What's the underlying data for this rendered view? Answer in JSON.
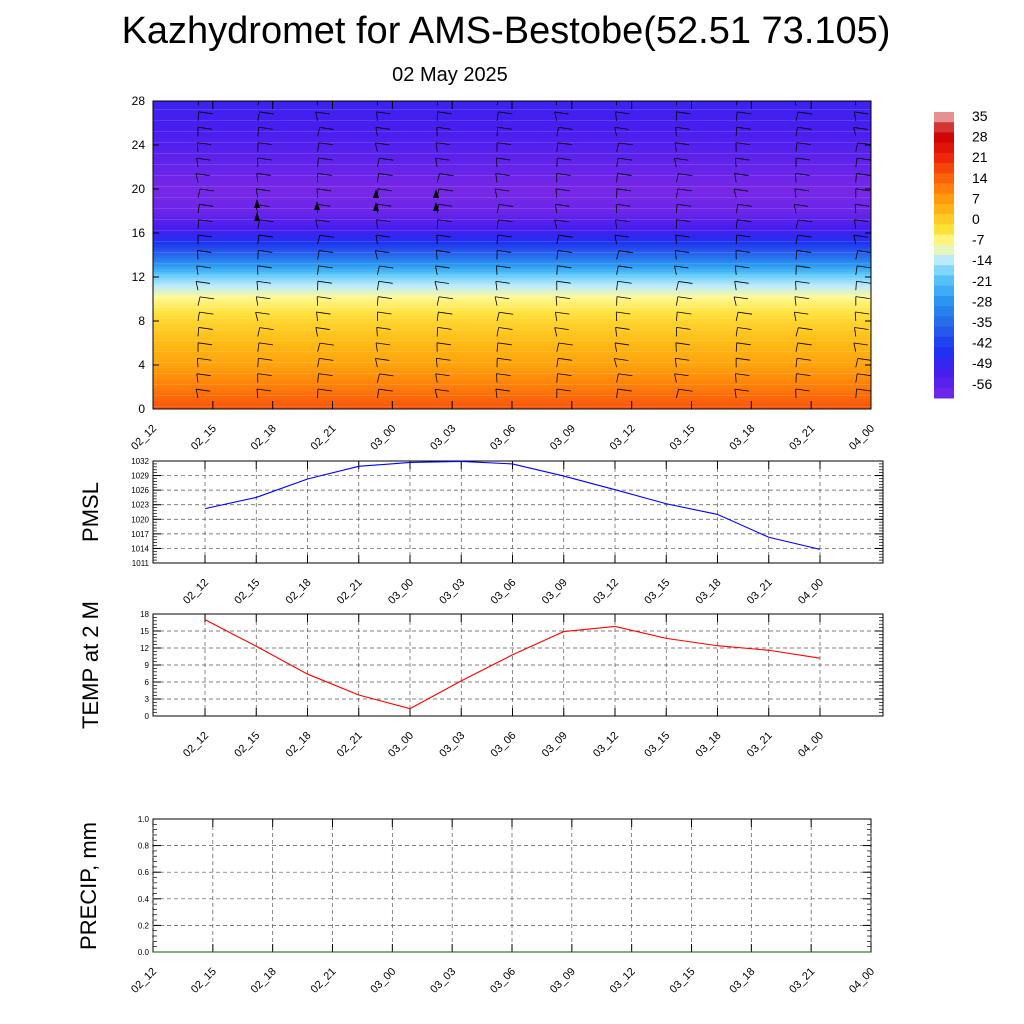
{
  "title": "Kazhydromet for AMS-Bestobe(52.51 73.105)",
  "subtitle": "02 May 2025",
  "colorbar": {
    "labels": [
      "35",
      "28",
      "21",
      "14",
      "7",
      "0",
      "-7",
      "-14",
      "-21",
      "-28",
      "-35",
      "-42",
      "-49",
      "-56"
    ]
  },
  "chart_data": [
    {
      "type": "heatmap",
      "description_source": "cross-section",
      "categories": [
        "02_12",
        "02_15",
        "02_18",
        "02_21",
        "03_00",
        "03_03",
        "03_06",
        "03_09",
        "03_12",
        "03_15",
        "03_18",
        "03_21",
        "04_00"
      ],
      "ylim": [
        0,
        28
      ],
      "yticks": [
        0,
        4,
        8,
        12,
        16,
        20,
        24,
        28
      ],
      "levels": [
        0,
        2,
        4,
        6,
        8,
        10,
        12,
        14,
        16,
        18,
        20,
        22,
        24,
        26,
        28
      ],
      "temperature_profile": [
        15,
        10,
        5,
        2,
        -2,
        -8,
        -18,
        -35,
        -50,
        -58,
        -60,
        -57,
        -54,
        -52,
        -50
      ],
      "colorbar_range": [
        -56,
        35
      ]
    },
    {
      "type": "line",
      "ylabel": "PMSL",
      "categories": [
        "02_12",
        "02_15",
        "02_18",
        "02_21",
        "03_00",
        "03_03",
        "03_06",
        "03_09",
        "03_12",
        "03_15",
        "03_18",
        "03_21",
        "04_00"
      ],
      "values": [
        1022.2,
        1024.5,
        1028.3,
        1030.9,
        1031.7,
        1031.9,
        1031.4,
        1028.9,
        1026.1,
        1023.2,
        1021.0,
        1016.3,
        1013.8
      ],
      "ylim": [
        1011,
        1032
      ],
      "yticks": [
        1011,
        1014,
        1017,
        1020,
        1023,
        1026,
        1029,
        1032
      ],
      "color": "#0000ff"
    },
    {
      "type": "line",
      "ylabel": "TEMP at 2 M",
      "categories": [
        "02_12",
        "02_15",
        "02_18",
        "02_21",
        "03_00",
        "03_03",
        "03_06",
        "03_09",
        "03_12",
        "03_15",
        "03_18",
        "03_21",
        "04_00"
      ],
      "values": [
        17.0,
        12.3,
        7.4,
        3.7,
        1.3,
        6.2,
        10.8,
        14.9,
        15.8,
        13.7,
        12.4,
        11.6,
        10.2
      ],
      "ylim": [
        0,
        18
      ],
      "yticks": [
        0,
        3,
        6,
        9,
        12,
        15,
        18
      ],
      "color": "#ff0000"
    },
    {
      "type": "line",
      "ylabel": "PRECIP, mm",
      "categories": [
        "02_12",
        "02_15",
        "02_18",
        "02_21",
        "03_00",
        "03_03",
        "03_06",
        "03_09",
        "03_12",
        "03_15",
        "03_18",
        "03_21",
        "04_00"
      ],
      "values": [
        0,
        0,
        0,
        0,
        0,
        0,
        0,
        0,
        0,
        0,
        0,
        0,
        0
      ],
      "ylim": [
        0.0,
        1.0
      ],
      "yticks": [
        "0.0",
        "0.2",
        "0.4",
        "0.6",
        "0.8",
        "1.0"
      ],
      "color": "#006400"
    }
  ]
}
